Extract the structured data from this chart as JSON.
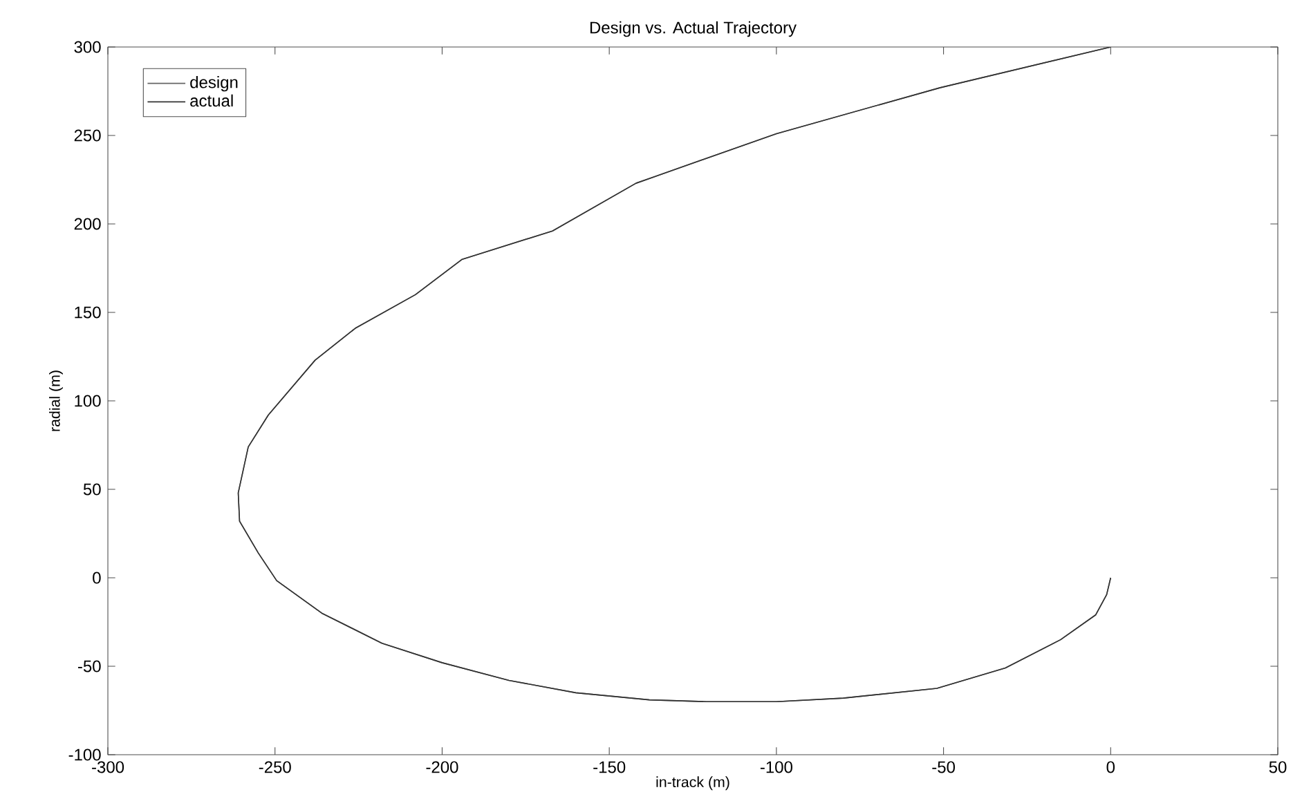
{
  "chart_data": {
    "type": "line",
    "title": "Design vs. Actual Trajectory",
    "xlabel": "in-track (m)",
    "ylabel": "radial (m)",
    "xlim": [
      -300,
      50
    ],
    "ylim": [
      -100,
      300
    ],
    "xticks": [
      -300,
      -250,
      -200,
      -150,
      -100,
      -50,
      0,
      50
    ],
    "yticks": [
      -100,
      -50,
      0,
      50,
      100,
      150,
      200,
      250,
      300
    ],
    "legend": "top left",
    "grid": false,
    "marker": "none",
    "line_style": "solid",
    "series": [
      {
        "name": "design",
        "color": "#666666",
        "x": [
          0,
          -51,
          -100,
          -142,
          -167,
          -194,
          -208,
          -226,
          -238,
          -252,
          -258,
          -261,
          -260.6,
          -255,
          -249.5,
          -236,
          -218,
          -200,
          -180,
          -160,
          -138,
          -121,
          -100,
          -80,
          -52,
          -31.5,
          -15,
          -4.5,
          -1.2,
          0
        ],
        "values": [
          300,
          277,
          251,
          223,
          196,
          180,
          160,
          141,
          123,
          92,
          74,
          48,
          32,
          14,
          -1.6,
          -20,
          -37,
          -48,
          -58,
          -65,
          -69,
          -70,
          -70,
          -68,
          -62.5,
          -51,
          -35,
          -21,
          -9.5,
          0
        ]
      },
      {
        "name": "actual",
        "color": "#333333",
        "x": [
          0,
          -51,
          -100,
          -142,
          -167,
          -194,
          -208,
          -226,
          -238,
          -252,
          -258,
          -261,
          -260.6,
          -255,
          -249.5,
          -236,
          -218,
          -200,
          -180,
          -160,
          -138,
          -121,
          -100,
          -80,
          -52,
          -31.5,
          -15,
          -4.5,
          -1.2,
          0
        ],
        "values": [
          300,
          277,
          251,
          223,
          196,
          180,
          160,
          141,
          123,
          92,
          74,
          48,
          32,
          14,
          -1.6,
          -20,
          -37,
          -48,
          -58,
          -65,
          -69,
          -70,
          -70,
          -68,
          -62.5,
          -51,
          -35,
          -21,
          -9.5,
          0
        ]
      }
    ]
  }
}
